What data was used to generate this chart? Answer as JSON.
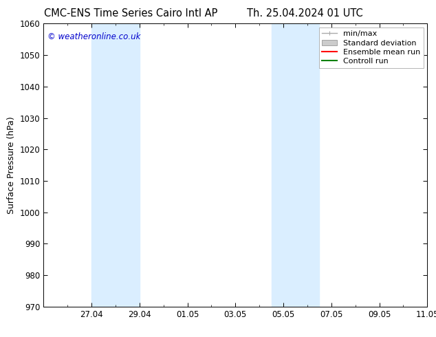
{
  "title_left": "CMC-ENS Time Series Cairo Intl AP",
  "title_right": "Th. 25.04.2024 01 UTC",
  "ylabel": "Surface Pressure (hPa)",
  "ylim": [
    970,
    1060
  ],
  "yticks": [
    970,
    980,
    990,
    1000,
    1010,
    1020,
    1030,
    1040,
    1050,
    1060
  ],
  "xlim": [
    0,
    16
  ],
  "xtick_labels": [
    "27.04",
    "29.04",
    "01.05",
    "03.05",
    "05.05",
    "07.05",
    "09.05",
    "11.05"
  ],
  "xtick_positions": [
    2,
    4,
    6,
    8,
    10,
    12,
    14,
    16
  ],
  "watermark": "© weatheronline.co.uk",
  "watermark_color": "#0000cc",
  "bg_color": "#ffffff",
  "plot_bg_color": "#ffffff",
  "shaded_bands": [
    {
      "x_start": 2,
      "x_end": 4,
      "color": "#daeeff"
    },
    {
      "x_start": 9.5,
      "x_end": 11.5,
      "color": "#daeeff"
    }
  ],
  "legend_labels": [
    "min/max",
    "Standard deviation",
    "Ensemble mean run",
    "Controll run"
  ],
  "legend_colors": [
    "#aaaaaa",
    "#cccccc",
    "#ff0000",
    "#008000"
  ],
  "font_size_title": 10.5,
  "font_size_tick": 8.5,
  "font_size_ylabel": 9,
  "font_size_legend": 8,
  "font_size_watermark": 8.5
}
